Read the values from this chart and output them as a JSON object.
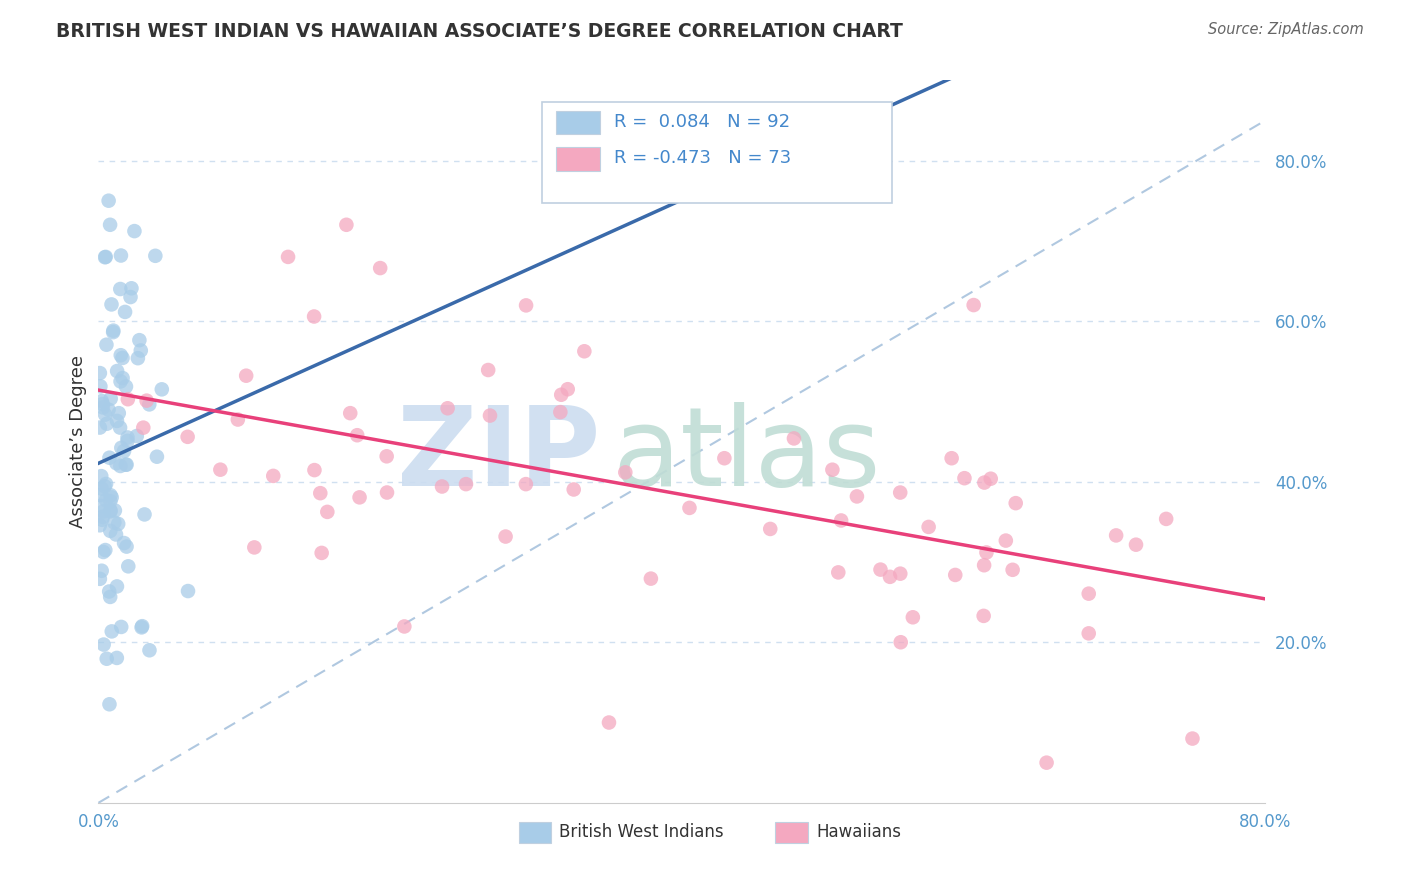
{
  "title": "BRITISH WEST INDIAN VS HAWAIIAN ASSOCIATE’S DEGREE CORRELATION CHART",
  "source": "Source: ZipAtlas.com",
  "ylabel": "Associate’s Degree",
  "xlim": [
    0.0,
    0.8
  ],
  "ylim": [
    0.0,
    0.9
  ],
  "ytick_vals": [
    0.2,
    0.4,
    0.6,
    0.8
  ],
  "ytick_labels": [
    "20.0%",
    "40.0%",
    "60.0%",
    "80.0%"
  ],
  "xtick_vals": [
    0.0,
    0.8
  ],
  "xtick_labels": [
    "0.0%",
    "80.0%"
  ],
  "blue_color": "#a8cce8",
  "pink_color": "#f4a8c0",
  "blue_line_color": "#3a6aaa",
  "pink_line_color": "#e8407a",
  "diag_line_color": "#b0c8e0",
  "legend_text_color": "#4488cc",
  "legend_border_color": "#c0d0e0",
  "tick_color": "#5599cc",
  "grid_color": "#d0e0f0",
  "background_color": "#ffffff",
  "title_color": "#333333",
  "source_color": "#666666",
  "ylabel_color": "#333333",
  "watermark_zip_color": "#ccddf0",
  "watermark_atlas_color": "#c0ddd5",
  "bottom_label_color": "#333333"
}
